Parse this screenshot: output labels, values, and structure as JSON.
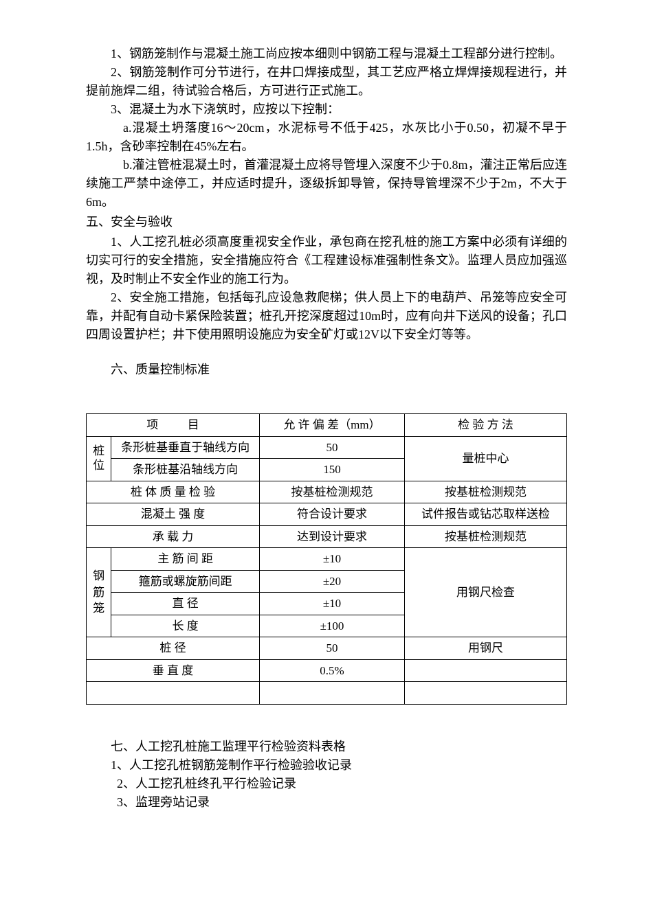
{
  "paragraphs": {
    "p1": "1、钢筋笼制作与混凝土施工尚应按本细则中钢筋工程与混凝土工程部分进行控制。",
    "p2": "2、钢筋笼制作可分节进行，在井口焊接成型，其工艺应严格立焊焊接规程进行，并提前施焊二组，待试验合格后，方可进行正式施工。",
    "p3": "3、混凝土为水下浇筑时，应按以下控制：",
    "p4": "a.混凝土坍落度16～20cm，水泥标号不低于425，水灰比小于0.50，初凝不早于1.5h，含砂率控制在45%左右。",
    "p5": "b.灌注管桩混凝土时，首灌混凝土应将导管埋入深度不少于0.8m，灌注正常后应连续施工严禁中途停工，并应适时提升，逐级拆卸导管，保持导管埋深不少于2m，不大于6m。",
    "s5_title": " 五、安全与验收",
    "p6": "1、人工挖孔桩必须高度重视安全作业，承包商在挖孔桩的施工方案中必须有详细的切实可行的安全措施，安全措施应符合《工程建设标准强制性条文》。监理人员应加强巡视，及时制止不安全作业的施工行为。",
    "p7": "2、安全施工措施，包括每孔应设急救爬梯；供人员上下的电葫芦、吊笼等应安全可靠，并配有自动卡紧保险装置；桩孔开挖深度超过10m时，应有向井下送风的设备；孔口四周设置护栏；井下使用照明设施应为安全矿灯或12V以下安全灯等等。",
    "s6_title": "六、质量控制标准"
  },
  "table": {
    "headers": {
      "item": "项",
      "item2": "目",
      "tolerance": "允 许 偏 差（mm）",
      "method": "检   验   方   法"
    },
    "rows": {
      "pile_pos_label": "桩位",
      "r1_item": "条形桩基垂直于轴线方向",
      "r1_tol": "50",
      "r1_method": "量桩中心",
      "r2_item": "条形桩基沿轴线方向",
      "r2_tol": "150",
      "r3_item": "桩 体 质 量 检 验",
      "r3_tol": "按基桩检测规范",
      "r3_method": "按基桩检测规范",
      "r4_item": "混凝土   强   度",
      "r4_tol": "符合设计要求",
      "r4_method": "试件报告或钻芯取样送检",
      "r5_item": "承    载    力",
      "r5_tol": "达到设计要求",
      "r5_method": "按基桩检测规范",
      "cage_label": "钢筋笼",
      "r6_item": "主   筋   间   距",
      "r6_tol": "±10",
      "r6_method": "用钢尺检查",
      "r7_item": "箍筋或螺旋筋间距",
      "r7_tol": "±20",
      "r8_item": "直         径",
      "r8_tol": "±10",
      "r9_item": "长         度",
      "r9_tol": "±100",
      "r10_item": "桩            径",
      "r10_tol": "50",
      "r10_method": "用钢尺",
      "r11_item": "垂    直    度",
      "r11_tol": "0.5%"
    }
  },
  "section7": {
    "title": "七、人工挖孔桩施工监理平行检验资料表格",
    "item1": "1、人工挖孔桩钢筋笼制作平行检验验收记录",
    "item2": "2、人工挖孔桩终孔平行检验记录",
    "item3": "3、监理旁站记录"
  }
}
